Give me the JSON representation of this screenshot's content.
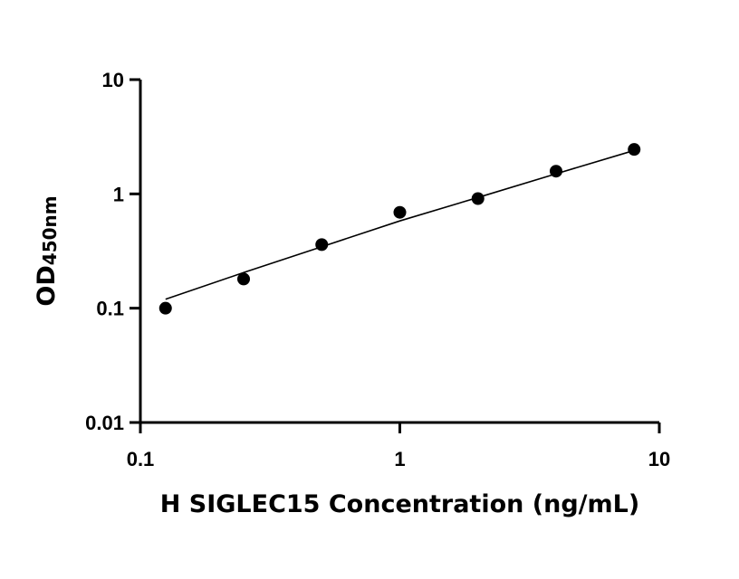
{
  "chart_data": {
    "type": "scatter",
    "title": "",
    "xlabel": "H SIGLEC15 Concentration (ng/mL)",
    "ylabel": "OD",
    "ylabel_subscript": "450nm",
    "x_scale": "log",
    "y_scale": "log",
    "xlim": [
      0.1,
      10
    ],
    "ylim": [
      0.01,
      10
    ],
    "x_ticks": [
      "0.1",
      "1",
      "10"
    ],
    "y_ticks": [
      "0.01",
      "0.1",
      "1",
      "10"
    ],
    "grid": false,
    "legend": "none",
    "series": [
      {
        "x": [
          0.125,
          0.25,
          0.5,
          1,
          2,
          4,
          8
        ],
        "y": [
          0.1,
          0.18,
          0.36,
          0.69,
          0.91,
          1.58,
          2.45
        ]
      }
    ],
    "fit_curve": {
      "x": [
        0.125,
        0.25,
        0.5,
        1,
        2,
        4,
        8
      ],
      "y": [
        0.12,
        0.205,
        0.345,
        0.58,
        0.93,
        1.5,
        2.4
      ]
    },
    "colors": {
      "points": "#000000",
      "line": "#000000"
    }
  }
}
